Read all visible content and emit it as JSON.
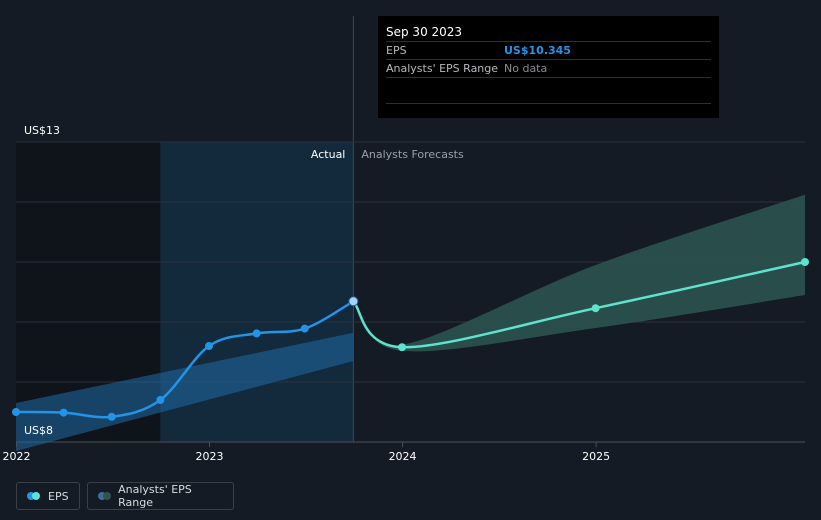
{
  "tooltip": {
    "date": "Sep 30 2023",
    "eps_label": "EPS",
    "eps_value": "US$10.345",
    "range_label": "Analysts' EPS Range",
    "range_value": "No data"
  },
  "labels": {
    "actual": "Actual",
    "forecast": "Analysts Forecasts"
  },
  "legend": {
    "eps": "EPS",
    "range": "Analysts' EPS Range"
  },
  "colors": {
    "background": "#151b24",
    "eps_line": "#2394e8",
    "forecast_line": "#5ee3cf",
    "range_past": "#1f6aa5",
    "range_forecast": "#2d5652",
    "grid": "#2b313a"
  },
  "chart_data": {
    "type": "line",
    "ylim": [
      8,
      13
    ],
    "ytick_labels": [
      "US$8",
      "US$13"
    ],
    "xtick_labels": [
      "2022",
      "2023",
      "2024",
      "2025"
    ],
    "xtick_dates": [
      "2022-01-01",
      "2023-01-01",
      "2024-01-01",
      "2025-01-01"
    ],
    "x_range": [
      "2021-12-31",
      "2026-01-31"
    ],
    "past_shade_start": "2022-09-30",
    "split_date": "2023-09-30",
    "grid": true,
    "legend_position": "bottom-left",
    "series": [
      {
        "name": "EPS",
        "x": [
          "2021-12-31",
          "2022-03-31",
          "2022-06-30",
          "2022-09-30",
          "2022-12-31",
          "2023-03-31",
          "2023-06-30",
          "2023-09-30"
        ],
        "y": [
          8.5,
          8.49,
          8.42,
          8.7,
          9.6,
          9.81,
          9.89,
          10.345
        ]
      },
      {
        "name": "Analysts Forecasts",
        "x": [
          "2023-09-30",
          "2023-12-31",
          "2024-12-31",
          "2026-01-31"
        ],
        "y": [
          10.345,
          9.58,
          10.23,
          11.0
        ]
      }
    ],
    "range_bands": [
      {
        "name": "Analysts' EPS Range",
        "x": [
          "2021-12-31",
          "2023-09-30"
        ],
        "low": [
          7.85,
          9.35
        ],
        "high": [
          8.65,
          9.82
        ]
      },
      {
        "name": "Analysts' EPS Range",
        "x": [
          "2023-09-30",
          "2023-12-31",
          "2024-12-31",
          "2026-01-31"
        ],
        "low": [
          10.3,
          9.52,
          9.9,
          10.45
        ],
        "high": [
          10.3,
          9.62,
          10.95,
          12.12
        ]
      }
    ]
  }
}
